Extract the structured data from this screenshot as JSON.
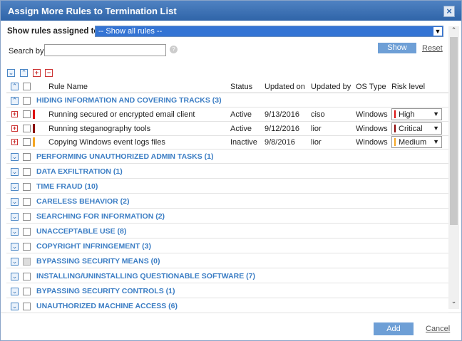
{
  "dialog": {
    "title": "Assign More Rules to Termination List",
    "filter_label": "Show rules assigned to",
    "filter_value": "-- Show all rules --",
    "search_label": "Search by:",
    "show_button": "Show",
    "reset_link": "Reset",
    "columns": [
      "Rule Name",
      "Status",
      "Updated on",
      "Updated by",
      "OS Type",
      "Risk level"
    ],
    "groups": [
      {
        "name": "HIDING INFORMATION AND COVERING TRACKS (3)",
        "expanded": true,
        "rules": [
          {
            "name": "Running secured or encrypted email client",
            "status": "Active",
            "updated_on": "9/13/2016",
            "updated_by": "ciso",
            "os": "Windows",
            "risk": "High",
            "risk_color": "#dd1111"
          },
          {
            "name": "Running steganography tools",
            "status": "Active",
            "updated_on": "9/12/2016",
            "updated_by": "lior",
            "os": "Windows",
            "risk": "Critical",
            "risk_color": "#8b0000"
          },
          {
            "name": "Copying Windows event logs files",
            "status": "Inactive",
            "updated_on": "9/8/2016",
            "updated_by": "lior",
            "os": "Windows",
            "risk": "Medium",
            "risk_color": "#f5a623"
          }
        ]
      },
      {
        "name": "PERFORMING UNAUTHORIZED ADMIN TASKS (1)"
      },
      {
        "name": "DATA EXFILTRATION (1)"
      },
      {
        "name": "TIME FRAUD (10)"
      },
      {
        "name": "CARELESS BEHAVIOR (2)"
      },
      {
        "name": "SEARCHING FOR INFORMATION (2)"
      },
      {
        "name": "UNACCEPTABLE USE (8)"
      },
      {
        "name": "COPYRIGHT INFRINGEMENT (3)"
      },
      {
        "name": "BYPASSING SECURITY MEANS (0)",
        "checkbox_disabled": true
      },
      {
        "name": "INSTALLING/UNINSTALLING QUESTIONABLE SOFTWARE (7)"
      },
      {
        "name": "BYPASSING SECURITY CONTROLS (1)"
      },
      {
        "name": "UNAUTHORIZED MACHINE ACCESS (6)"
      }
    ],
    "add_button": "Add",
    "cancel_link": "Cancel"
  }
}
